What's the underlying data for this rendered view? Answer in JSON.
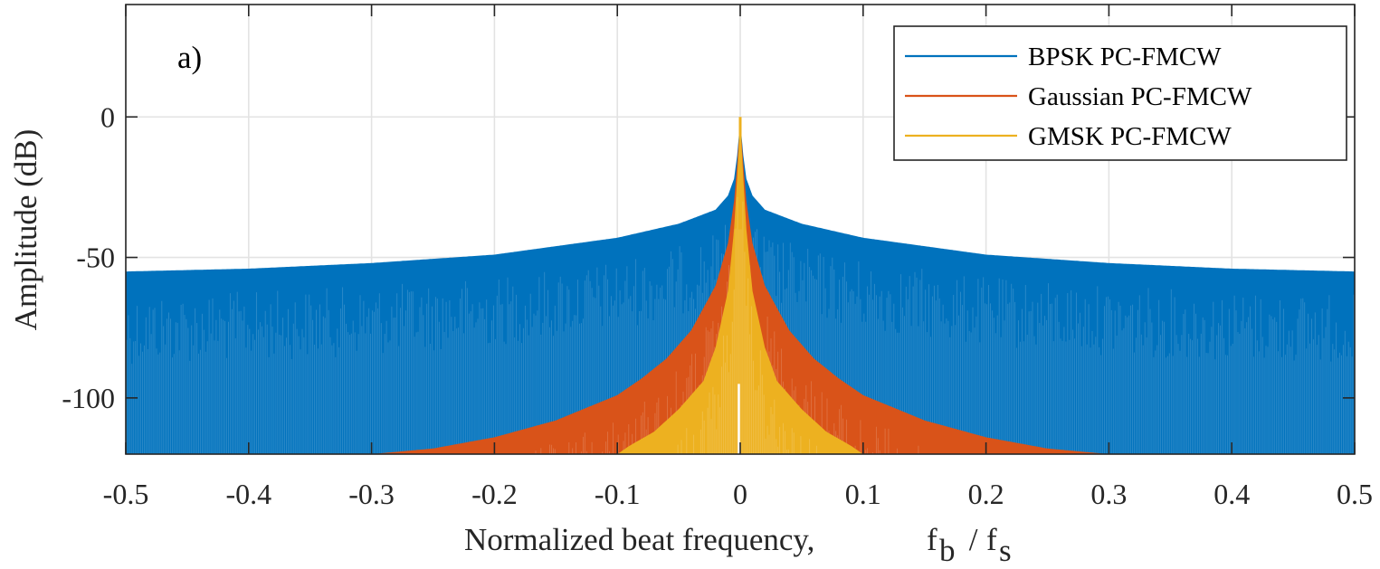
{
  "chart_data": {
    "type": "line",
    "panel_label": "a)",
    "xlabel": "Normalized beat frequency,",
    "xlabel_symbol": {
      "f1": "f",
      "sub1": "b",
      "slash": " / ",
      "f2": "f",
      "sub2": "s"
    },
    "ylabel": "Amplitude (dB)",
    "xlim": [
      -0.5,
      0.5
    ],
    "ylim": [
      -120,
      40
    ],
    "xticks": [
      -0.5,
      -0.4,
      -0.3,
      -0.2,
      -0.1,
      0,
      0.1,
      0.2,
      0.3,
      0.4,
      0.5
    ],
    "xtick_labels": [
      "-0.5",
      "-0.4",
      "-0.3",
      "-0.2",
      "-0.1",
      "0",
      "0.1",
      "0.2",
      "0.3",
      "0.4",
      "0.5"
    ],
    "yticks": [
      0,
      -50,
      -100
    ],
    "ytick_labels": [
      "0",
      "-50",
      "-100"
    ],
    "grid": true,
    "legend_position": "top-right",
    "series": [
      {
        "name": "BPSK PC-FMCW",
        "color": "#0072BD",
        "peak_db": 0,
        "envelope_upper": {
          "x": [
            0,
            0.002,
            0.005,
            0.01,
            0.02,
            0.05,
            0.1,
            0.2,
            0.3,
            0.4,
            0.5
          ],
          "y": [
            0,
            -12,
            -22,
            -28,
            -33,
            -38,
            -43,
            -49,
            -52,
            -54,
            -55
          ]
        },
        "envelope_lower_min_db": -120
      },
      {
        "name": "Gaussian PC-FMCW",
        "color": "#D95319",
        "peak_db": 0,
        "envelope_upper": {
          "x": [
            0,
            0.002,
            0.005,
            0.01,
            0.02,
            0.04,
            0.06,
            0.08,
            0.1,
            0.15,
            0.2,
            0.25,
            0.3
          ],
          "y": [
            0,
            -14,
            -30,
            -45,
            -60,
            -76,
            -86,
            -93,
            -99,
            -108,
            -114,
            -118,
            -120
          ]
        },
        "envelope_lower_min_db": -120
      },
      {
        "name": "GMSK PC-FMCW",
        "color": "#EDB120",
        "peak_db": 0,
        "envelope_upper": {
          "x": [
            0,
            0.002,
            0.005,
            0.01,
            0.02,
            0.03,
            0.05,
            0.07,
            0.09,
            0.1
          ],
          "y": [
            0,
            -18,
            -40,
            -62,
            -82,
            -94,
            -104,
            -112,
            -117,
            -120
          ]
        },
        "envelope_lower_min_db": -120
      }
    ]
  }
}
